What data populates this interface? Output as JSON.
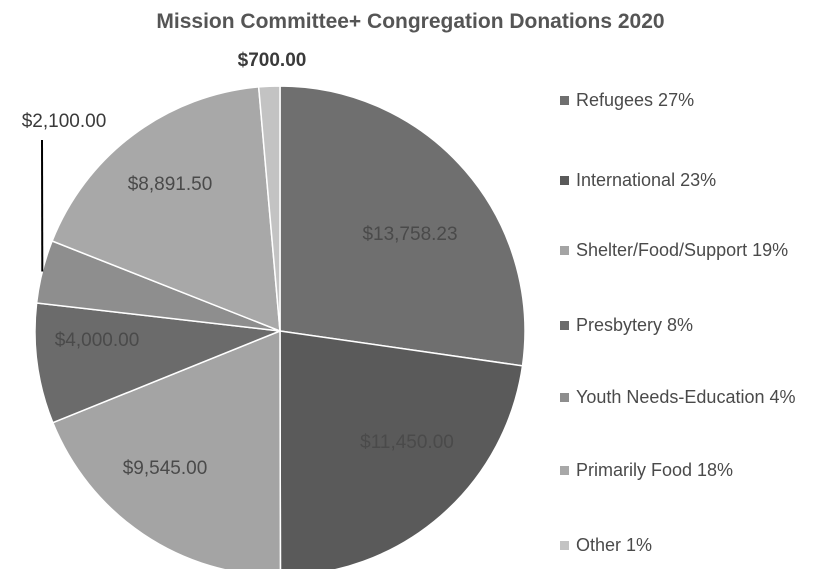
{
  "chart_data": {
    "type": "pie",
    "title": "Mission Committee+ Congregation Donations 2020",
    "slices": [
      {
        "label": "Refugees 27%",
        "value": 13758.23,
        "data_label": "$13,758.23",
        "color": "#6f6f6f"
      },
      {
        "label": "International 23%",
        "value": 11450.0,
        "data_label": "$11,450.00",
        "color": "#5a5a5a"
      },
      {
        "label": "Shelter/Food/Support 19%",
        "value": 9545.0,
        "data_label": "$9,545.00",
        "color": "#a4a4a4"
      },
      {
        "label": "Presbytery 8%",
        "value": 4000.0,
        "data_label": "$4,000.00",
        "color": "#6b6b6b"
      },
      {
        "label": "Youth Needs-Education 4%",
        "value": 2100.0,
        "data_label": "$2,100.00",
        "color": "#8e8e8e"
      },
      {
        "label": "Primarily Food 18%",
        "value": 8891.5,
        "data_label": "$8,891.50",
        "color": "#a8a8a8"
      },
      {
        "label": "Other 1%",
        "value": 700.0,
        "data_label": "$700.00",
        "color": "#c3c3c3"
      }
    ],
    "legend_position": "right"
  }
}
